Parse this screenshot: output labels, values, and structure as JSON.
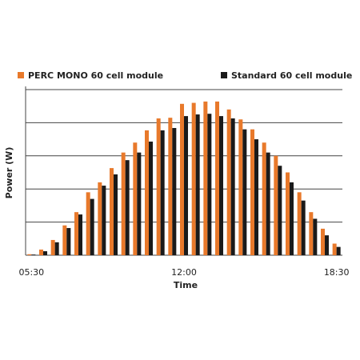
{
  "chart_data": {
    "type": "bar",
    "x_label": "Time",
    "y_label": "Power (W)",
    "categories": [
      "05:30",
      null,
      null,
      null,
      null,
      null,
      null,
      null,
      null,
      null,
      null,
      null,
      null,
      "12:00",
      null,
      null,
      null,
      null,
      null,
      null,
      null,
      null,
      null,
      null,
      null,
      null,
      "18:30"
    ],
    "series": [
      {
        "name": "PERC MONO 60 cell module",
        "color": "#e8792b",
        "values": [
          0.03,
          0.17,
          0.46,
          0.9,
          1.3,
          1.9,
          2.2,
          2.63,
          3.1,
          3.4,
          3.77,
          4.13,
          4.15,
          4.57,
          4.6,
          4.64,
          4.64,
          4.4,
          4.1,
          3.8,
          3.4,
          3.0,
          2.5,
          1.9,
          1.3,
          0.8,
          0.35
        ]
      },
      {
        "name": "Standard 60 cell module",
        "color": "#1a1a1a",
        "values": [
          0.02,
          0.12,
          0.39,
          0.82,
          1.23,
          1.7,
          2.1,
          2.44,
          2.87,
          3.1,
          3.43,
          3.77,
          3.84,
          4.2,
          4.25,
          4.27,
          4.2,
          4.13,
          3.8,
          3.5,
          3.1,
          2.7,
          2.2,
          1.65,
          1.1,
          0.6,
          0.25
        ]
      }
    ],
    "ylim": [
      0,
      5
    ],
    "ygrid": [
      0,
      1,
      2,
      3,
      4,
      5
    ],
    "grid": true
  }
}
